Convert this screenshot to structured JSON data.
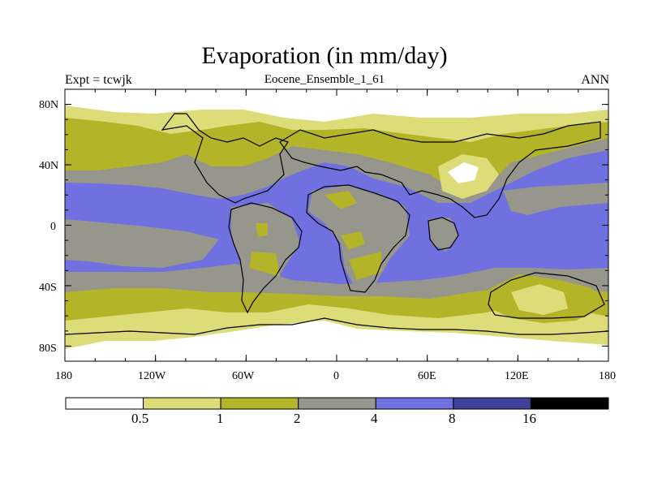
{
  "title": "Evaporation (in mm/day)",
  "subtitle": "Eocene_Ensemble_1_61",
  "left_label": "Expt = tcwjk",
  "right_label": "ANN",
  "lat_labels": [
    "80N",
    "40N",
    "0",
    "40S",
    "80S"
  ],
  "lon_labels": [
    "180",
    "120W",
    "60W",
    "0",
    "60E",
    "120E",
    "180"
  ],
  "colorbar": {
    "colors": [
      "#ffffff",
      "#dcdc78",
      "#b4b428",
      "#96968c",
      "#7070e0",
      "#40409a",
      "#000000"
    ],
    "labels": [
      "0.5",
      "1",
      "2",
      "4",
      "8",
      "16"
    ]
  },
  "chart_data": {
    "type": "map",
    "variable": "Evaporation (in mm/day)",
    "levels": [
      0.5,
      1,
      2,
      4,
      8,
      16
    ],
    "level_colors": [
      "#ffffff",
      "#dcdc78",
      "#b4b428",
      "#96968c",
      "#7070e0",
      "#40409a",
      "#000000"
    ],
    "lat_range": [
      -90,
      90
    ],
    "lon_range": [
      -180,
      180
    ]
  }
}
